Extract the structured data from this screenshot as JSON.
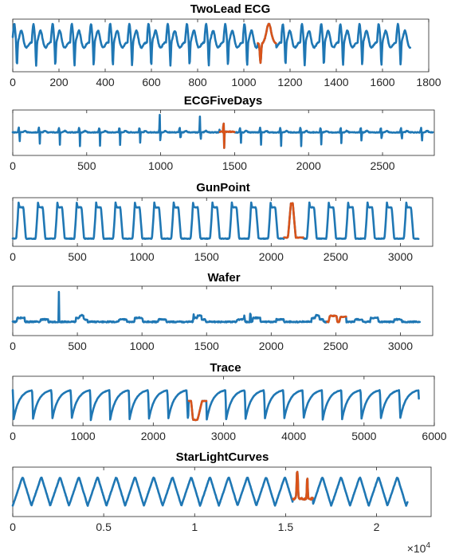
{
  "figure": {
    "background": "#ffffff",
    "normal_color": "#1f77b4",
    "anomaly_color": "#d95319",
    "exponent_label": "×10",
    "exponent_power": "4"
  },
  "chart_data": [
    {
      "type": "line",
      "title": "TwoLead ECG",
      "pattern": "twolead",
      "xlim": [
        0,
        1800
      ],
      "xticks": [
        0,
        200,
        400,
        600,
        800,
        1000,
        1200,
        1400,
        1600,
        1800
      ],
      "xtick_labels": [
        "0",
        "200",
        "400",
        "600",
        "800",
        "1000",
        "1200",
        "1400",
        "1600",
        "1800"
      ],
      "series_length": 1720,
      "period": 83,
      "anomaly_range": [
        1060,
        1140
      ],
      "ylim": [
        -1,
        1
      ]
    },
    {
      "type": "line",
      "title": "ECGFiveDays",
      "pattern": "ecgfive",
      "xlim": [
        0,
        2850
      ],
      "xticks": [
        0,
        500,
        1000,
        1500,
        2000,
        2500
      ],
      "xtick_labels": [
        "0",
        "500",
        "1000",
        "1500",
        "2000",
        "2500"
      ],
      "series_length": 2840,
      "period": 136,
      "anomaly_range": [
        1400,
        1500
      ],
      "ylim": [
        -1,
        1
      ]
    },
    {
      "type": "line",
      "title": "GunPoint",
      "pattern": "gunpoint",
      "xlim": [
        0,
        3250
      ],
      "xticks": [
        0,
        500,
        1000,
        1500,
        2000,
        2500,
        3000
      ],
      "xtick_labels": [
        "0",
        "500",
        "1000",
        "1500",
        "2000",
        "2500",
        "3000"
      ],
      "series_length": 3140,
      "period": 150,
      "anomaly_range": [
        2100,
        2250
      ],
      "ylim": [
        -1,
        1
      ]
    },
    {
      "type": "line",
      "title": "Wafer",
      "pattern": "wafer",
      "xlim": [
        0,
        3250
      ],
      "xticks": [
        0,
        500,
        1000,
        1500,
        2000,
        2500,
        3000
      ],
      "xtick_labels": [
        "0",
        "500",
        "1000",
        "1500",
        "2000",
        "2500",
        "3000"
      ],
      "series_length": 3150,
      "period": 152,
      "anomaly_range": [
        2430,
        2580
      ],
      "ylim": [
        -1,
        1
      ]
    },
    {
      "type": "line",
      "title": "Trace",
      "pattern": "trace",
      "xlim": [
        0,
        6000
      ],
      "xticks": [
        0,
        1000,
        2000,
        3000,
        4000,
        5000,
        6000
      ],
      "xtick_labels": [
        "0",
        "1000",
        "2000",
        "3000",
        "4000",
        "5000",
        "6000"
      ],
      "series_length": 5780,
      "period": 275,
      "anomaly_range": [
        2500,
        2760
      ],
      "ylim": [
        -1,
        1
      ]
    },
    {
      "type": "line",
      "title": "StarLightCurves",
      "pattern": "starlight",
      "xlim": [
        0,
        23000
      ],
      "xticks": [
        0,
        5000,
        10000,
        15000,
        20000
      ],
      "xtick_labels": [
        "0",
        "0.5",
        "1",
        "1.5",
        "2"
      ],
      "series_length": 21700,
      "period": 1030,
      "anomaly_range": [
        15400,
        16500
      ],
      "ylim": [
        -1,
        1
      ]
    }
  ]
}
